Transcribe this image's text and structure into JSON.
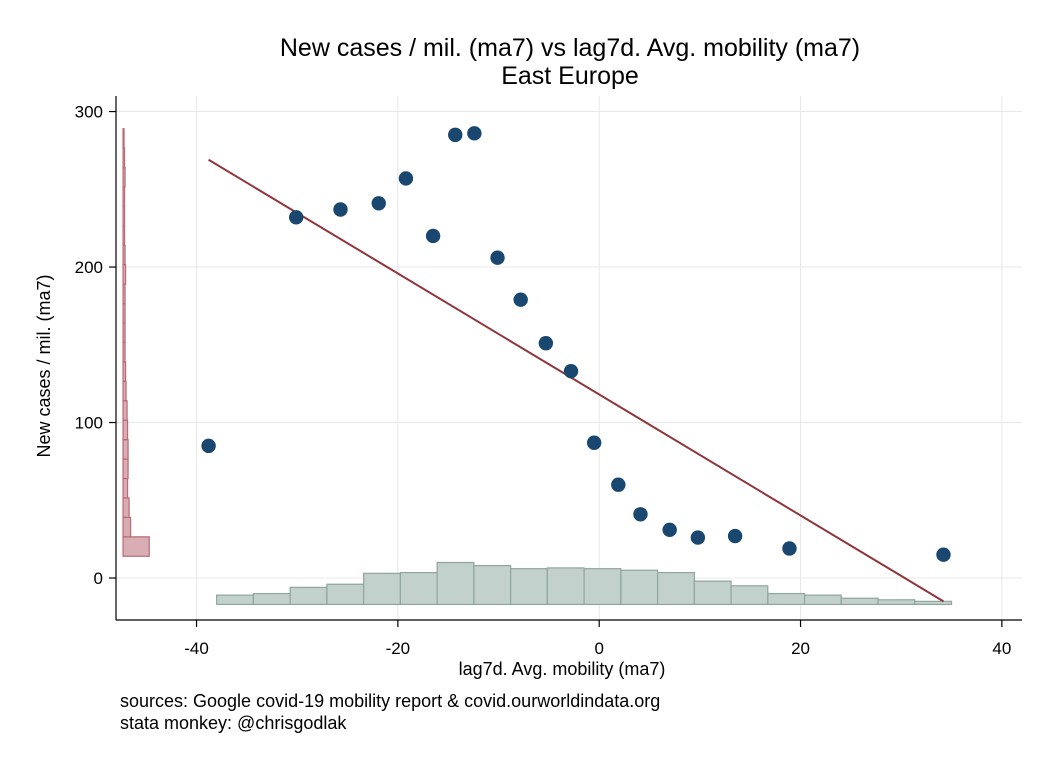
{
  "chart_data": {
    "type": "scatter",
    "title": "New cases / mil. (ma7) vs lag7d. Avg. mobility (ma7)",
    "subtitle": "East Europe",
    "xlabel": "lag7d. Avg. mobility (ma7)",
    "ylabel": "New cases / mil. (ma7)",
    "xlim": [
      -48,
      42
    ],
    "ylim": [
      -27,
      310
    ],
    "xticks": [
      -40,
      -20,
      0,
      20,
      40
    ],
    "yticks": [
      0,
      100,
      200,
      300
    ],
    "grid": true,
    "colors": {
      "points": "#1a476f",
      "fit_line": "#90353b",
      "x_histogram_fill": "#c3d1cc",
      "x_histogram_stroke": "#8fa59d",
      "y_histogram_fill": "#d8adb3",
      "y_histogram_stroke": "#b96a74",
      "grid": "#e8e8e8"
    },
    "points": [
      {
        "x": -38.8,
        "y": 85
      },
      {
        "x": -30.1,
        "y": 232
      },
      {
        "x": -25.7,
        "y": 237
      },
      {
        "x": -21.9,
        "y": 241
      },
      {
        "x": -19.2,
        "y": 257
      },
      {
        "x": -16.5,
        "y": 220
      },
      {
        "x": -14.3,
        "y": 285
      },
      {
        "x": -12.4,
        "y": 286
      },
      {
        "x": -10.1,
        "y": 206
      },
      {
        "x": -7.8,
        "y": 179
      },
      {
        "x": -5.3,
        "y": 151
      },
      {
        "x": -2.8,
        "y": 133
      },
      {
        "x": -0.5,
        "y": 87
      },
      {
        "x": 1.9,
        "y": 60
      },
      {
        "x": 4.1,
        "y": 41
      },
      {
        "x": 7.0,
        "y": 31
      },
      {
        "x": 9.8,
        "y": 26
      },
      {
        "x": 13.5,
        "y": 27
      },
      {
        "x": 18.9,
        "y": 19
      },
      {
        "x": 34.2,
        "y": 15
      }
    ],
    "fit_line": {
      "x": [
        -38.8,
        34.2
      ],
      "y": [
        269,
        -15
      ]
    },
    "x_histogram": {
      "bin_width": 3.65,
      "bins": [
        {
          "from": -38.0,
          "height": 6
        },
        {
          "from": -34.35,
          "height": 7
        },
        {
          "from": -30.7,
          "height": 11
        },
        {
          "from": -27.05,
          "height": 13
        },
        {
          "from": -23.4,
          "height": 20
        },
        {
          "from": -19.75,
          "height": 20.5
        },
        {
          "from": -16.1,
          "height": 27
        },
        {
          "from": -12.45,
          "height": 25
        },
        {
          "from": -8.8,
          "height": 23
        },
        {
          "from": -5.15,
          "height": 23.5
        },
        {
          "from": -1.5,
          "height": 23
        },
        {
          "from": 2.15,
          "height": 22
        },
        {
          "from": 5.8,
          "height": 20.5
        },
        {
          "from": 9.45,
          "height": 15
        },
        {
          "from": 13.1,
          "height": 12
        },
        {
          "from": 16.75,
          "height": 7
        },
        {
          "from": 20.4,
          "height": 6
        },
        {
          "from": 24.05,
          "height": 4
        },
        {
          "from": 27.7,
          "height": 3
        },
        {
          "from": 31.35,
          "height": 2
        }
      ]
    },
    "y_histogram": {
      "bin_height": 12.5,
      "bins": [
        {
          "from": 14,
          "width": 2.6
        },
        {
          "from": 26.5,
          "width": 0.75
        },
        {
          "from": 39,
          "width": 0.6
        },
        {
          "from": 51.5,
          "width": 0.45
        },
        {
          "from": 64,
          "width": 0.5
        },
        {
          "from": 76.5,
          "width": 0.5
        },
        {
          "from": 89,
          "width": 0.45
        },
        {
          "from": 101.5,
          "width": 0.4
        },
        {
          "from": 114,
          "width": 0.3
        },
        {
          "from": 126.5,
          "width": 0.25
        },
        {
          "from": 139,
          "width": 0.2
        },
        {
          "from": 151.5,
          "width": 0.2
        },
        {
          "from": 164,
          "width": 0.2
        },
        {
          "from": 176.5,
          "width": 0.2
        },
        {
          "from": 189,
          "width": 0.25
        },
        {
          "from": 201.5,
          "width": 0.2
        },
        {
          "from": 214,
          "width": 0.15
        },
        {
          "from": 226.5,
          "width": 0.15
        },
        {
          "from": 239,
          "width": 0.15
        },
        {
          "from": 251.5,
          "width": 0.2
        },
        {
          "from": 264,
          "width": 0.15
        },
        {
          "from": 276.5,
          "width": 0.1
        }
      ]
    },
    "histogram_baseline_x": -47.3,
    "histogram_baseline_y": -17
  },
  "notes": {
    "sources": "sources: Google covid-19 mobility report & covid.ourworldindata.org",
    "credit": "stata monkey: @chrisgodlak"
  }
}
